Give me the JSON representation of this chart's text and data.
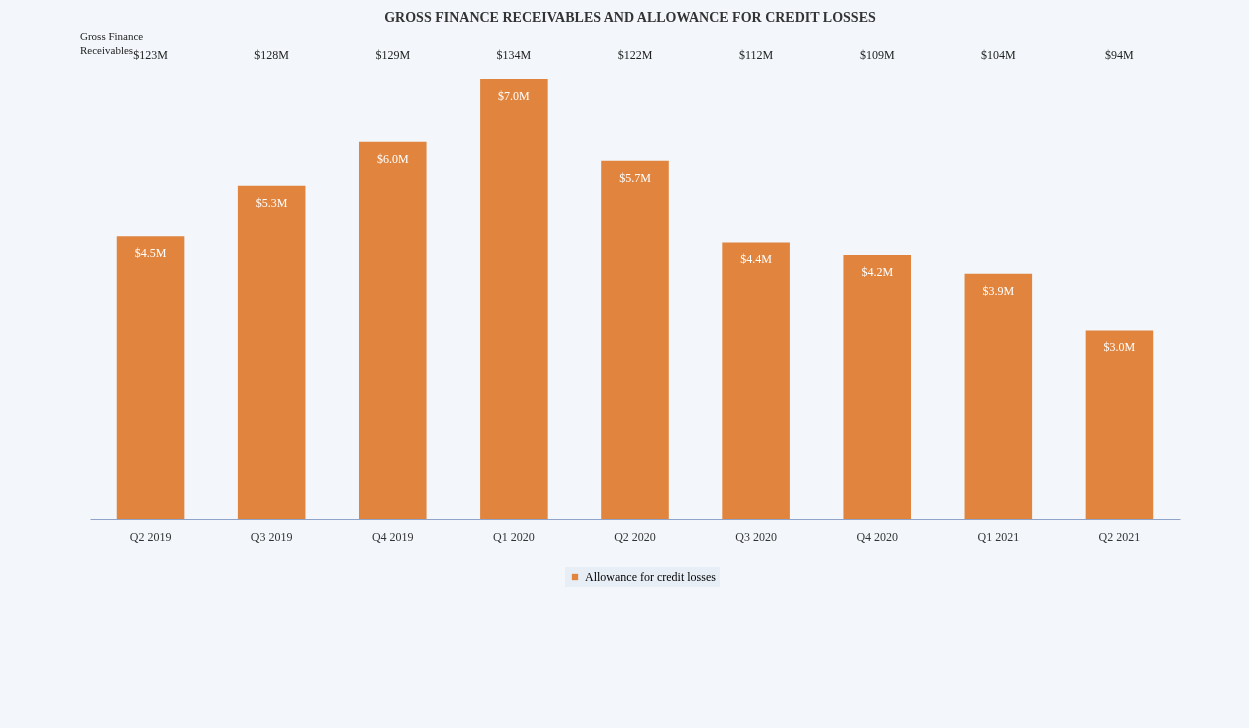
{
  "chart_data": {
    "type": "bar",
    "title": "GROSS FINANCE RECEIVABLES AND ALLOWANCE FOR CREDIT LOSSES",
    "categories": [
      "Q2 2019",
      "Q3 2019",
      "Q4 2019",
      "Q1 2020",
      "Q2 2020",
      "Q3 2020",
      "Q4 2020",
      "Q1 2021",
      "Q2 2021"
    ],
    "series": [
      {
        "name": "Allowance for credit losses",
        "color": "#e0843e",
        "values": [
          4.5,
          5.3,
          6.0,
          7.0,
          5.7,
          4.4,
          4.2,
          3.9,
          3.0
        ],
        "value_labels": [
          "$4.5M",
          "$5.3M",
          "$6.0M",
          "$7.0M",
          "$5.7M",
          "$4.4M",
          "$4.2M",
          "$3.9M",
          "$3.0M"
        ]
      }
    ],
    "annotations": [
      "Gross Finance Receivables",
      "$123M",
      "$128M",
      "$129M",
      "$134M",
      "$122M",
      "$112M",
      "$109M",
      "$104M",
      "$94M"
    ],
    "legend": "bottom"
  }
}
